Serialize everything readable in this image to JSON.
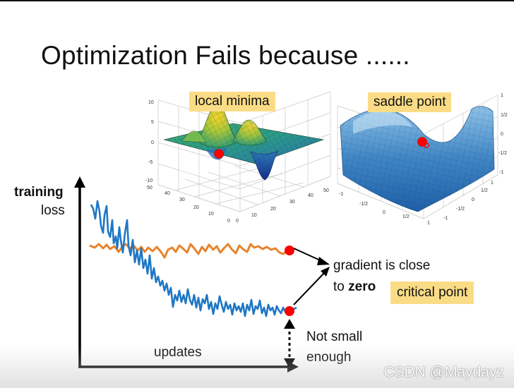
{
  "slide": {
    "title": "Optimization Fails because ......",
    "local_minima_label": "local minima",
    "saddle_point_label": "saddle point",
    "y_axis_label_bold": "training",
    "y_axis_label": "loss",
    "x_axis_label": "updates",
    "gradient_line1": "gradient is close",
    "gradient_line2_prefix": "to",
    "gradient_line2_bold": "zero",
    "critical_point_label": "critical point",
    "not_small_line1": "Not small",
    "not_small_line2": "enough",
    "watermark": "CSDN @Maydayz"
  },
  "local_minima_axes": {
    "z_ticks": [
      "10",
      "5",
      "0",
      "-5",
      "-10"
    ],
    "x_ticks": [
      "50",
      "40",
      "30",
      "20",
      "10",
      "0"
    ],
    "y_ticks": [
      "0",
      "10",
      "20",
      "30",
      "40",
      "50"
    ]
  },
  "saddle_axes": {
    "z_ticks": [
      "1",
      "1/2",
      "0",
      "-1/2",
      "-1"
    ],
    "x_ticks": [
      "-1",
      "-1/2",
      "0",
      "1/2",
      "1"
    ],
    "y_ticks": [
      "1",
      "1/2",
      "0",
      "-1/2",
      "-1"
    ]
  },
  "colors": {
    "orange_curve": "#e8822a",
    "blue_curve": "#1f77c4",
    "red_point": "#ff0000",
    "label_bg": "#fbdc86"
  }
}
